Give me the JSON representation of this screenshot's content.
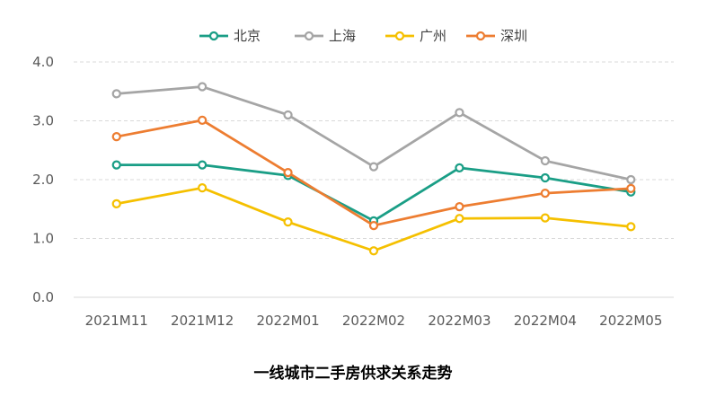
{
  "chart_data": {
    "type": "line",
    "title": "一线城市二手房供求关系走势",
    "categories": [
      "2021M11",
      "2021M12",
      "2022M01",
      "2022M02",
      "2022M03",
      "2022M04",
      "2022M05"
    ],
    "ylim": [
      0,
      4
    ],
    "yticks": [
      "0.0",
      "1.0",
      "2.0",
      "3.0",
      "4.0"
    ],
    "grid": true,
    "legend_position": "top",
    "series": [
      {
        "name": "北京",
        "color": "#1a9e86",
        "values": [
          2.25,
          2.25,
          2.07,
          1.3,
          2.2,
          2.03,
          1.79
        ]
      },
      {
        "name": "上海",
        "color": "#a5a5a5",
        "values": [
          3.46,
          3.58,
          3.1,
          2.22,
          3.14,
          2.32,
          2.0
        ]
      },
      {
        "name": "广州",
        "color": "#f5c000",
        "values": [
          1.59,
          1.86,
          1.28,
          0.79,
          1.34,
          1.35,
          1.2
        ]
      },
      {
        "name": "深圳",
        "color": "#ed7d31",
        "values": [
          2.73,
          3.01,
          2.12,
          1.22,
          1.54,
          1.77,
          1.85
        ]
      }
    ]
  }
}
